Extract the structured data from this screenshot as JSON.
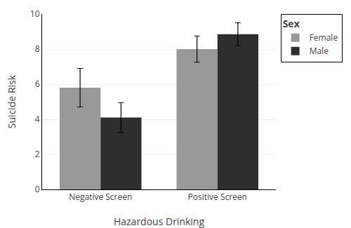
{
  "chart_data": {
    "type": "bar",
    "categories": [
      "Negative Screen",
      "Positive Screen"
    ],
    "series": [
      {
        "name": "Female",
        "color": "#999999",
        "values": [
          5.8,
          8.0
        ],
        "errors": [
          1.1,
          0.75
        ]
      },
      {
        "name": "Male",
        "color": "#2e2e2e",
        "values": [
          4.1,
          8.85
        ],
        "errors": [
          0.85,
          0.65
        ]
      }
    ],
    "xlabel": "Hazardous Drinking",
    "ylabel": "Suicide Risk",
    "legend_title": "Sex",
    "legend": "upper right",
    "ylim": [
      0,
      10
    ],
    "yticks": [
      0,
      2,
      4,
      6,
      8,
      10
    ],
    "grid": "y"
  }
}
